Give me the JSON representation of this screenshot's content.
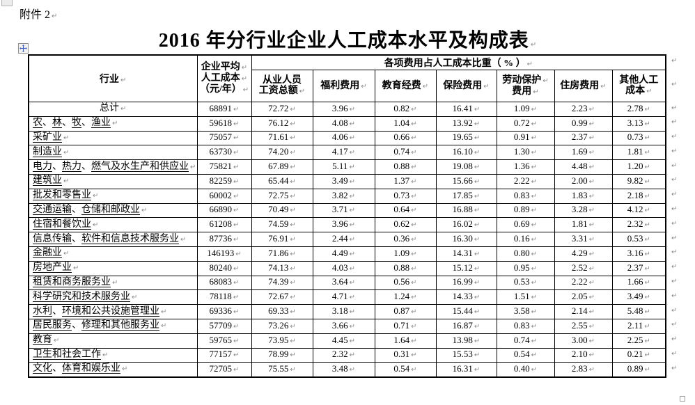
{
  "page": {
    "attachment_label": "附件 2",
    "title": "2016 年分行业企业人工成本水平及构成表"
  },
  "marks": {
    "return_mark": "↵"
  },
  "icons": {
    "table_move": "move-icon",
    "table_resize": "resize-square-icon"
  },
  "table": {
    "header": {
      "industry_label": "行业",
      "avg_cost_lines": [
        "企业平均",
        "人工成本",
        "（元/年）"
      ],
      "ratio_group_label": "各项费用占人工成本比重（ % ）",
      "columns": [
        {
          "key": "wage-total",
          "lines": [
            "从业人员",
            "工资总额"
          ],
          "mark_lines": [
            false,
            true
          ]
        },
        {
          "key": "welfare",
          "lines": [
            "福利费用"
          ],
          "mark_lines": [
            true
          ]
        },
        {
          "key": "education",
          "lines": [
            "教育经费"
          ],
          "mark_lines": [
            true
          ]
        },
        {
          "key": "insurance",
          "lines": [
            "保险费用"
          ],
          "mark_lines": [
            true
          ]
        },
        {
          "key": "labor-protection",
          "lines": [
            "劳动保护",
            "费用"
          ],
          "mark_lines": [
            true,
            true
          ]
        },
        {
          "key": "housing",
          "lines": [
            "住房费用"
          ],
          "mark_lines": [
            true
          ]
        },
        {
          "key": "other",
          "lines": [
            "其他人工",
            "成本"
          ],
          "mark_lines": [
            false,
            true
          ]
        }
      ]
    },
    "rows": [
      {
        "industry": "总计",
        "center": true,
        "underline": false,
        "values": [
          "68891",
          "72.72",
          "3.96",
          "0.82",
          "16.41",
          "1.09",
          "2.23",
          "2.78"
        ]
      },
      {
        "industry": "农、林、牧、渔业",
        "center": false,
        "underline": true,
        "values": [
          "59618",
          "76.12",
          "4.08",
          "1.04",
          "13.92",
          "0.72",
          "0.99",
          "3.13"
        ]
      },
      {
        "industry": "采矿业",
        "center": false,
        "underline": true,
        "values": [
          "75057",
          "71.61",
          "4.06",
          "0.66",
          "19.65",
          "0.91",
          "2.37",
          "0.73"
        ]
      },
      {
        "industry": "制造业",
        "center": false,
        "underline": true,
        "values": [
          "63730",
          "74.20",
          "4.17",
          "0.74",
          "16.10",
          "1.30",
          "1.69",
          "1.81"
        ]
      },
      {
        "industry": "电力、热力、燃气及水生产和供应业",
        "center": false,
        "underline": true,
        "values": [
          "75821",
          "67.89",
          "5.11",
          "0.88",
          "19.08",
          "1.36",
          "4.48",
          "1.20"
        ]
      },
      {
        "industry": "建筑业",
        "center": false,
        "underline": true,
        "values": [
          "82259",
          "65.44",
          "3.49",
          "1.37",
          "15.66",
          "2.22",
          "2.00",
          "9.82"
        ]
      },
      {
        "industry": "批发和零售业",
        "center": false,
        "underline": true,
        "values": [
          "60002",
          "72.75",
          "3.82",
          "0.73",
          "17.85",
          "0.83",
          "1.83",
          "2.18"
        ]
      },
      {
        "industry": "交通运输、仓储和邮政业",
        "center": false,
        "underline": true,
        "values": [
          "66890",
          "70.49",
          "3.71",
          "0.64",
          "16.88",
          "0.89",
          "3.28",
          "4.12"
        ]
      },
      {
        "industry": "住宿和餐饮业",
        "center": false,
        "underline": true,
        "values": [
          "61208",
          "74.59",
          "3.96",
          "0.62",
          "16.02",
          "0.69",
          "1.81",
          "2.32"
        ]
      },
      {
        "industry": "信息传输、软件和信息技术服务业",
        "center": false,
        "underline": true,
        "values": [
          "87736",
          "76.91",
          "2.44",
          "0.36",
          "16.30",
          "0.16",
          "3.31",
          "0.53"
        ]
      },
      {
        "industry": "金融业",
        "center": false,
        "underline": true,
        "values": [
          "146193",
          "71.86",
          "4.49",
          "1.09",
          "14.31",
          "0.80",
          "4.29",
          "3.16"
        ]
      },
      {
        "industry": "房地产业",
        "center": false,
        "underline": true,
        "values": [
          "80240",
          "74.13",
          "4.03",
          "0.88",
          "15.12",
          "0.95",
          "2.52",
          "2.37"
        ]
      },
      {
        "industry": "租赁和商务服务业",
        "center": false,
        "underline": true,
        "values": [
          "68083",
          "74.39",
          "3.64",
          "0.56",
          "16.99",
          "0.53",
          "2.22",
          "1.66"
        ]
      },
      {
        "industry": "科学研究和技术服务业",
        "center": false,
        "underline": true,
        "values": [
          "78118",
          "72.67",
          "4.71",
          "1.24",
          "14.33",
          "1.51",
          "2.05",
          "3.49"
        ]
      },
      {
        "industry": "水利、环境和公共设施管理业",
        "center": false,
        "underline": true,
        "values": [
          "69336",
          "69.33",
          "3.18",
          "0.87",
          "15.44",
          "3.58",
          "2.14",
          "5.48"
        ]
      },
      {
        "industry": "居民服务、修理和其他服务业",
        "center": false,
        "underline": true,
        "values": [
          "57709",
          "73.26",
          "3.66",
          "0.71",
          "16.87",
          "0.83",
          "2.55",
          "2.11"
        ]
      },
      {
        "industry": "教育",
        "center": false,
        "underline": true,
        "values": [
          "59765",
          "73.95",
          "4.45",
          "1.64",
          "13.98",
          "0.74",
          "3.00",
          "2.25"
        ]
      },
      {
        "industry": "卫生和社会工作",
        "center": false,
        "underline": true,
        "values": [
          "77157",
          "78.99",
          "2.32",
          "0.31",
          "15.53",
          "0.54",
          "2.10",
          "0.21"
        ]
      },
      {
        "industry": "文化、体育和娱乐业",
        "center": false,
        "underline": true,
        "values": [
          "72705",
          "75.55",
          "3.48",
          "0.54",
          "16.31",
          "0.40",
          "2.83",
          "0.89"
        ]
      }
    ]
  }
}
